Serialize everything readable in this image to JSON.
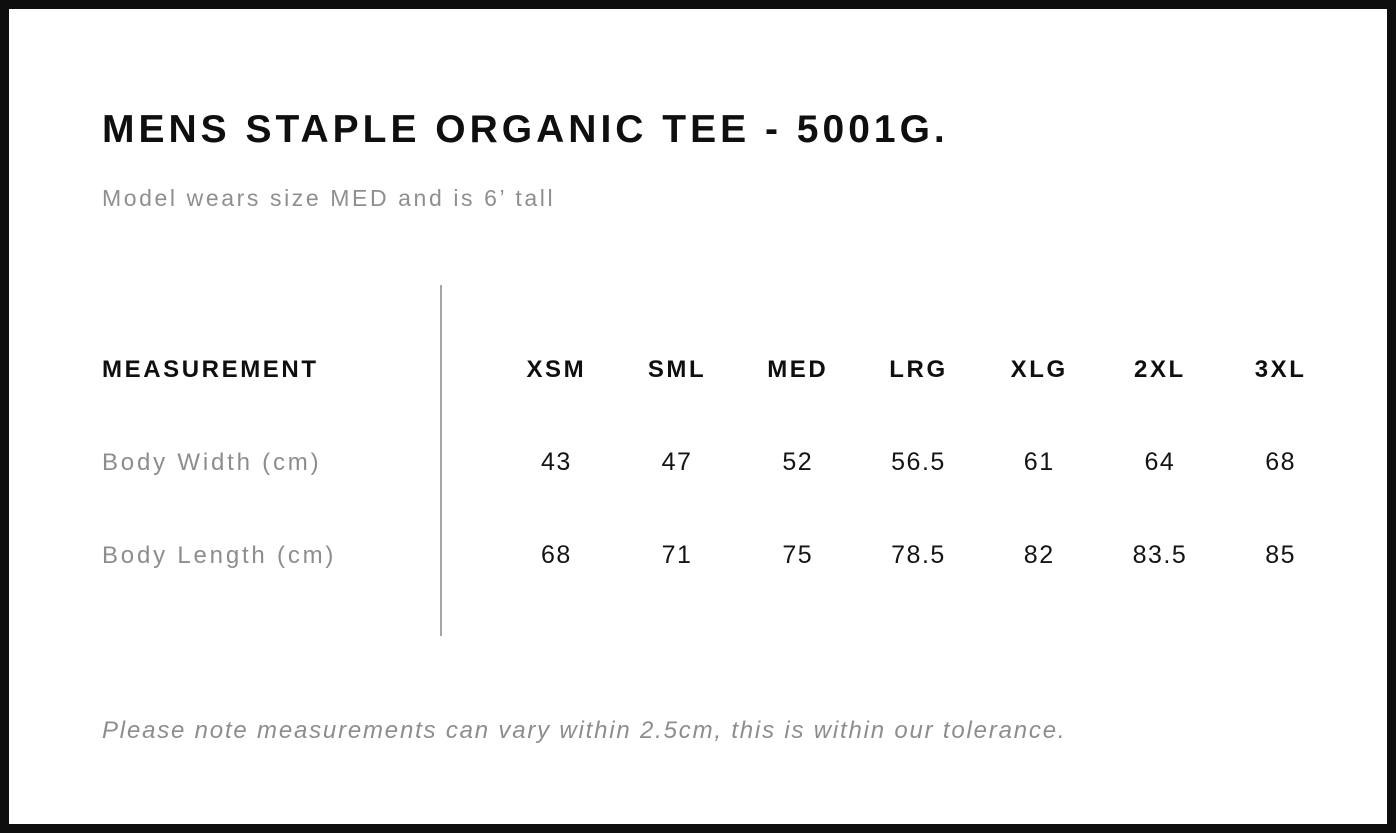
{
  "page": {
    "title": "MENS STAPLE ORGANIC TEE - 5001G.",
    "subtitle": "Model wears size MED and is 6’ tall",
    "footnote": "Please note measurements can vary within 2.5cm, this is within our tolerance."
  },
  "size_chart": {
    "type": "table",
    "measurement_header": "MEASUREMENT",
    "sizes": [
      "XSM",
      "SML",
      "MED",
      "LRG",
      "XLG",
      "2XL",
      "3XL"
    ],
    "rows": [
      {
        "label": "Body Width (cm)",
        "values": [
          "43",
          "47",
          "52",
          "56.5",
          "61",
          "64",
          "68"
        ]
      },
      {
        "label": "Body Length (cm)",
        "values": [
          "68",
          "71",
          "75",
          "78.5",
          "82",
          "83.5",
          "85"
        ]
      }
    ]
  },
  "colors": {
    "text_black": "#0f0f0f",
    "text_gray": "#8d8d8d",
    "divider_gray": "#a5a5a5",
    "frame_border": "#0e0e0e",
    "background": "#ffffff"
  }
}
